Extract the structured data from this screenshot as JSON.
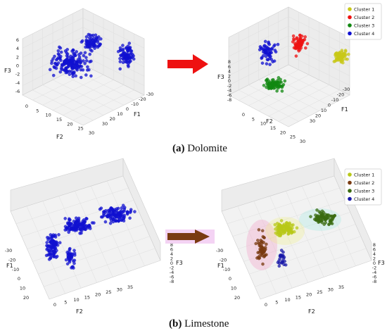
{
  "captions": [
    {
      "tag": "(a)",
      "text": "Dolomite"
    },
    {
      "tag": "(b)",
      "text": "Limestone"
    }
  ],
  "colors": {
    "arrow_a": "#ee1111",
    "arrow_b": "#7a3b12",
    "arrow_b_glow": "#e8a8e8"
  },
  "chart_data": [
    {
      "type": "scatter",
      "panel": "a-left",
      "view": "3d",
      "xlabel": "F1",
      "ylabel": "F2",
      "zlabel": "F3",
      "xticks": [
        "-30",
        "-20",
        "-10",
        "0",
        "10",
        "20",
        "30"
      ],
      "yticks": [
        "0",
        "5",
        "10",
        "15",
        "20",
        "25",
        "30"
      ],
      "zticks": [
        "6",
        "4",
        "2",
        "0",
        "-2",
        "-4",
        "-6"
      ],
      "series": [
        {
          "color": "#1010d0",
          "x": [
            0,
            20
          ],
          "y": [
            2,
            30
          ],
          "z": [
            -6,
            6
          ]
        }
      ]
    },
    {
      "type": "scatter",
      "panel": "a-right",
      "view": "3d",
      "xlabel": "F1",
      "ylabel": "F2",
      "zlabel": "F3",
      "xticks": [
        "-30",
        "-20",
        "-10",
        "0",
        "10",
        "20",
        "30"
      ],
      "yticks": [
        "0",
        "5",
        "10",
        "15",
        "20",
        "25",
        "30"
      ],
      "zticks": [
        "8",
        "6",
        "4",
        "2",
        "0",
        "-2",
        "-4",
        "-6",
        "-8"
      ],
      "legend": "top-right",
      "series": [
        {
          "name": "Cluster 1",
          "color": "#c8c818"
        },
        {
          "name": "Cluster 2",
          "color": "#ee1111"
        },
        {
          "name": "Cluster 3",
          "color": "#118811"
        },
        {
          "name": "Cluster 4",
          "color": "#1010d0"
        }
      ]
    },
    {
      "type": "scatter",
      "panel": "b-left",
      "view": "3d",
      "xlabel": "F1",
      "ylabel": "F2",
      "zlabel": "F3",
      "xticks": [
        "-30",
        "-20",
        "-10",
        "0",
        "10",
        "20"
      ],
      "yticks": [
        "0",
        "5",
        "10",
        "15",
        "20",
        "25",
        "30",
        "35"
      ],
      "zticks": [
        "8",
        "6",
        "4",
        "2",
        "0",
        "-2",
        "-4",
        "-6",
        "-8"
      ],
      "series": [
        {
          "color": "#1010d0"
        }
      ]
    },
    {
      "type": "scatter",
      "panel": "b-right",
      "view": "3d",
      "xlabel": "F1",
      "ylabel": "F2",
      "zlabel": "F3",
      "xticks": [
        "-30",
        "-20",
        "-10",
        "0",
        "10",
        "20"
      ],
      "yticks": [
        "0",
        "5",
        "10",
        "15",
        "20",
        "25",
        "30",
        "35"
      ],
      "zticks": [
        "8",
        "6",
        "4",
        "2",
        "0",
        "-2",
        "-4",
        "-6",
        "-8"
      ],
      "legend": "top-right",
      "series": [
        {
          "name": "Cluster 1",
          "color": "#b8c818"
        },
        {
          "name": "Cluster 2",
          "color": "#7a3b12"
        },
        {
          "name": "Cluster 3",
          "color": "#3a6b10"
        },
        {
          "name": "Cluster 4",
          "color": "#1a1aa8"
        }
      ]
    }
  ]
}
